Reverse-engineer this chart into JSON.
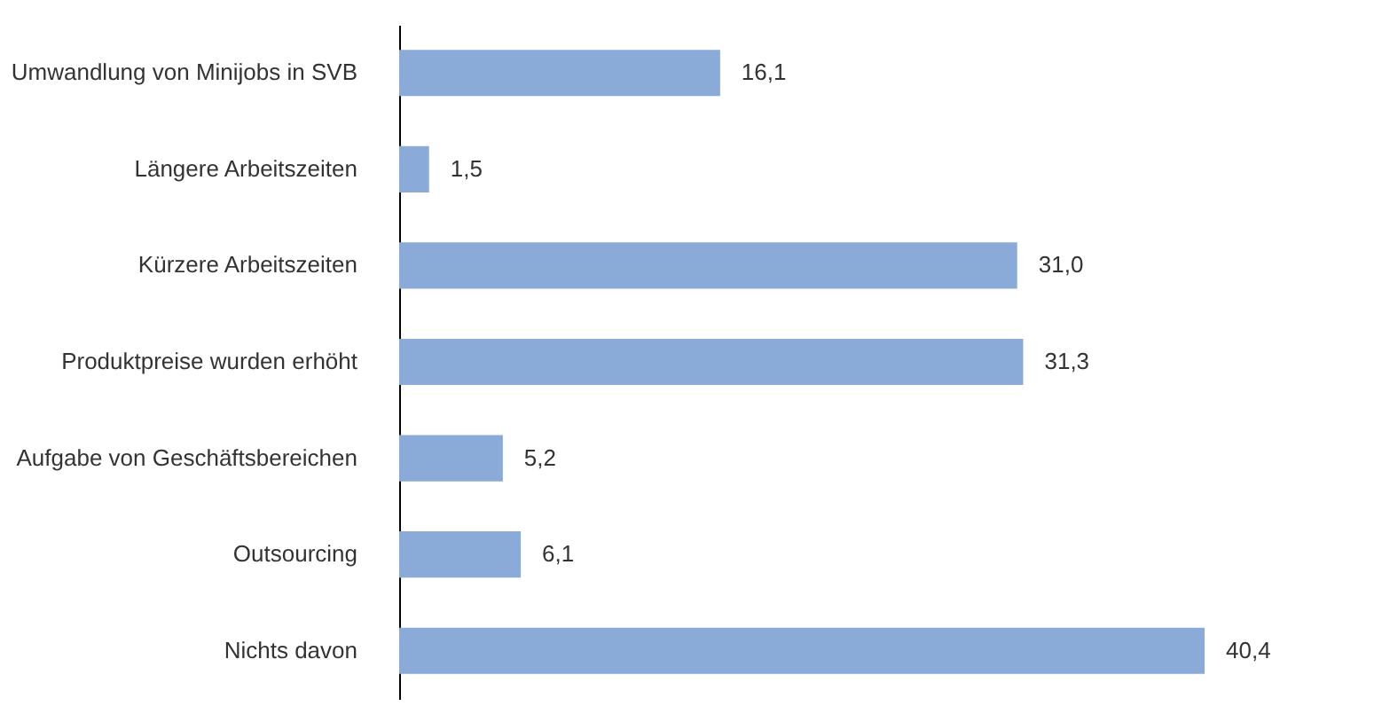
{
  "chart_data": {
    "type": "bar",
    "orientation": "horizontal",
    "categories": [
      "Umwandlung von Minijobs in SVB",
      "Längere Arbeitszeiten",
      "Kürzere Arbeitszeiten",
      "Produktpreise wurden erhöht",
      "Aufgabe von Geschäftsbereichen",
      "Outsourcing",
      "Nichts davon"
    ],
    "values": [
      16.1,
      1.5,
      31.0,
      31.3,
      5.2,
      6.1,
      40.4
    ],
    "value_labels": [
      "16,1",
      "1,5",
      "31,0",
      "31,3",
      "5,2",
      "6,1",
      "40,4"
    ],
    "color": "#8aaad8"
  }
}
